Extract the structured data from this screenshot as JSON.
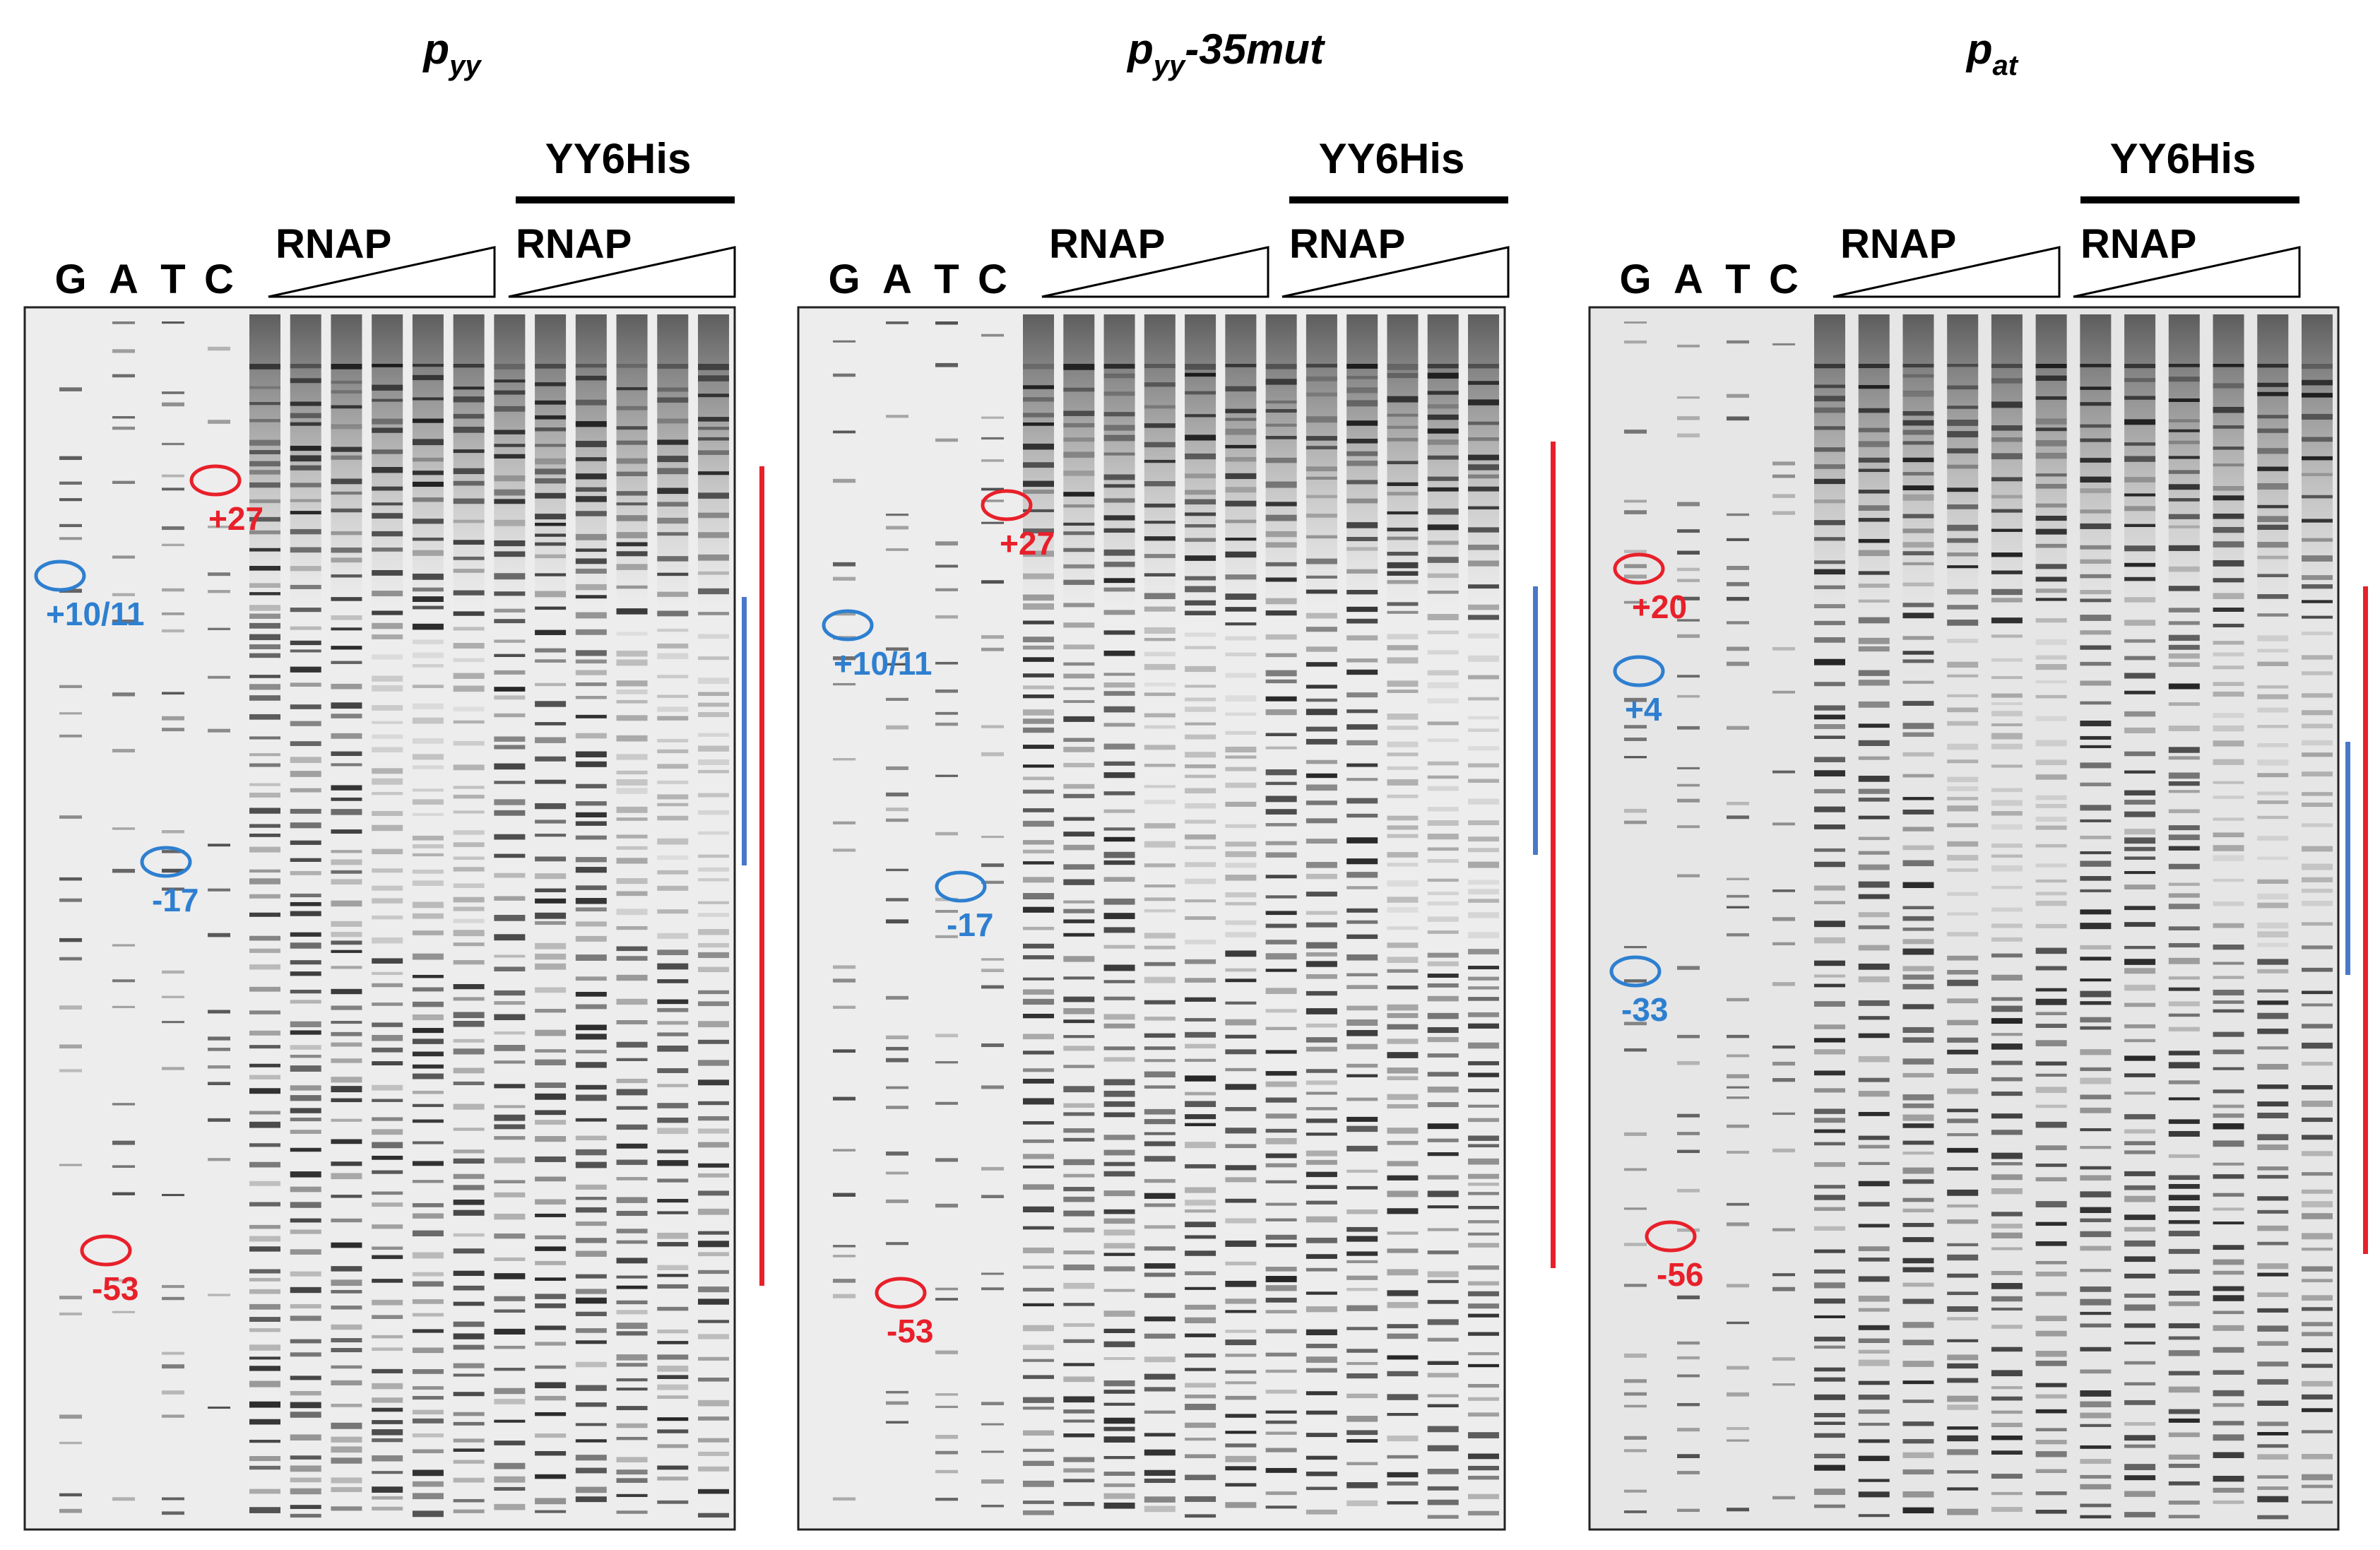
{
  "panels": [
    {
      "title_main": "p",
      "title_sub": "yy",
      "title_suffix": "",
      "lanes": [
        "G",
        "A",
        "T",
        "C"
      ],
      "rnap_left_label": "RNAP",
      "group_label": "YY6His",
      "rnap_right_label": "RNAP",
      "markers": [
        {
          "label": "+27",
          "color": "#e8202a"
        },
        {
          "label": "+10/11",
          "color": "#2e7fd0"
        },
        {
          "label": "-17",
          "color": "#2e7fd0"
        },
        {
          "label": "-53",
          "color": "#e8202a"
        }
      ]
    },
    {
      "title_main": "p",
      "title_sub": "yy",
      "title_suffix": "-35mut",
      "lanes": [
        "G",
        "A",
        "T",
        "C"
      ],
      "rnap_left_label": "RNAP",
      "group_label": "YY6His",
      "rnap_right_label": "RNAP",
      "markers": [
        {
          "label": "+27",
          "color": "#e8202a"
        },
        {
          "label": "+10/11",
          "color": "#2e7fd0"
        },
        {
          "label": "-17",
          "color": "#2e7fd0"
        },
        {
          "label": "-53",
          "color": "#e8202a"
        }
      ]
    },
    {
      "title_main": "p",
      "title_sub": "at",
      "title_suffix": "",
      "lanes": [
        "G",
        "A",
        "T",
        "C"
      ],
      "rnap_left_label": "RNAP",
      "group_label": "YY6His",
      "rnap_right_label": "RNAP",
      "markers": [
        {
          "label": "+20",
          "color": "#e8202a"
        },
        {
          "label": "+4",
          "color": "#2e7fd0"
        },
        {
          "label": "-33",
          "color": "#2e7fd0"
        },
        {
          "label": "-56",
          "color": "#e8202a"
        }
      ]
    }
  ],
  "colors": {
    "red": "#e8202a",
    "blue": "#4a78c8",
    "gel_bg": "#efefef",
    "band": "#1a1a1a"
  }
}
